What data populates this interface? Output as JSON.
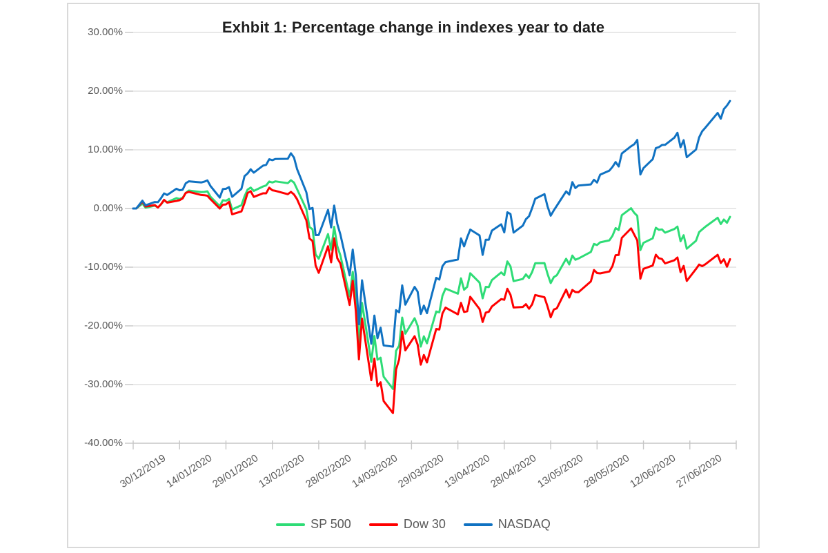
{
  "chart": {
    "grid_color": "#D9D9D9",
    "axis_color": "#C6C6C6",
    "text_color": "#595959",
    "border_color": "#D9D9D9"
  },
  "chart_data": {
    "type": "line",
    "title": "Exhbit 1:  Percentage change in indexes year to date",
    "xlabel": "",
    "ylabel": "",
    "ylim": [
      -40,
      30
    ],
    "grid": "horizontal",
    "legend_position": "bottom",
    "y_tick_values": [
      30,
      20,
      10,
      0,
      -10,
      -20,
      -30,
      -40
    ],
    "y_tick_labels": [
      "30.00%",
      "20.00%",
      "10.00%",
      "0.00%",
      "-10.00%",
      "-20.00%",
      "-30.00%",
      "-40.00%"
    ],
    "x_tick_labels": [
      "30/12/2019",
      "14/01/2020",
      "29/01/2020",
      "13/02/2020",
      "28/02/2020",
      "14/03/2020",
      "29/03/2020",
      "13/04/2020",
      "28/04/2020",
      "13/05/2020",
      "28/05/2020",
      "12/06/2020",
      "27/06/2020"
    ],
    "x_tick_interval_days": 15,
    "dates": [
      "30/12/2019",
      "31/12/2019",
      "02/01/2020",
      "03/01/2020",
      "06/01/2020",
      "07/01/2020",
      "08/01/2020",
      "09/01/2020",
      "10/01/2020",
      "13/01/2020",
      "14/01/2020",
      "15/01/2020",
      "16/01/2020",
      "17/01/2020",
      "21/01/2020",
      "22/01/2020",
      "23/01/2020",
      "24/01/2020",
      "27/01/2020",
      "28/01/2020",
      "29/01/2020",
      "30/01/2020",
      "31/01/2020",
      "03/02/2020",
      "04/02/2020",
      "05/02/2020",
      "06/02/2020",
      "07/02/2020",
      "10/02/2020",
      "11/02/2020",
      "12/02/2020",
      "13/02/2020",
      "14/02/2020",
      "18/02/2020",
      "19/02/2020",
      "20/02/2020",
      "21/02/2020",
      "24/02/2020",
      "25/02/2020",
      "26/02/2020",
      "27/02/2020",
      "28/02/2020",
      "02/03/2020",
      "03/03/2020",
      "04/03/2020",
      "05/03/2020",
      "06/03/2020",
      "09/03/2020",
      "10/03/2020",
      "11/03/2020",
      "12/03/2020",
      "13/03/2020",
      "16/03/2020",
      "17/03/2020",
      "18/03/2020",
      "19/03/2020",
      "20/03/2020",
      "23/03/2020",
      "24/03/2020",
      "25/03/2020",
      "26/03/2020",
      "27/03/2020",
      "30/03/2020",
      "31/03/2020",
      "01/04/2020",
      "02/04/2020",
      "03/04/2020",
      "06/04/2020",
      "07/04/2020",
      "08/04/2020",
      "09/04/2020",
      "13/04/2020",
      "14/04/2020",
      "15/04/2020",
      "16/04/2020",
      "17/04/2020",
      "20/04/2020",
      "21/04/2020",
      "22/04/2020",
      "23/04/2020",
      "24/04/2020",
      "27/04/2020",
      "28/04/2020",
      "29/04/2020",
      "30/04/2020",
      "01/05/2020",
      "04/05/2020",
      "05/05/2020",
      "06/05/2020",
      "07/05/2020",
      "08/05/2020",
      "11/05/2020",
      "12/05/2020",
      "13/05/2020",
      "14/05/2020",
      "15/05/2020",
      "18/05/2020",
      "19/05/2020",
      "20/05/2020",
      "21/05/2020",
      "22/05/2020",
      "26/05/2020",
      "27/05/2020",
      "28/05/2020",
      "29/05/2020",
      "01/06/2020",
      "02/06/2020",
      "03/06/2020",
      "04/06/2020",
      "05/06/2020",
      "08/06/2020",
      "09/06/2020",
      "10/06/2020",
      "11/06/2020",
      "12/06/2020",
      "15/06/2020",
      "16/06/2020",
      "17/06/2020",
      "18/06/2020",
      "19/06/2020",
      "22/06/2020",
      "23/06/2020",
      "24/06/2020",
      "25/06/2020",
      "26/06/2020",
      "29/06/2020",
      "30/06/2020",
      "01/07/2020",
      "02/07/2020",
      "06/07/2020",
      "07/07/2020",
      "08/07/2020",
      "09/07/2020",
      "10/07/2020"
    ],
    "series": [
      {
        "name": "SP 500",
        "color": "#2EDC76",
        "values": [
          0.0,
          0.0,
          0.84,
          0.13,
          0.48,
          0.2,
          0.69,
          1.36,
          1.07,
          1.77,
          1.62,
          1.81,
          2.66,
          3.06,
          2.79,
          2.82,
          2.93,
          2.0,
          0.4,
          1.41,
          1.32,
          1.64,
          -0.16,
          0.56,
          2.07,
          3.22,
          3.56,
          3.0,
          3.75,
          3.93,
          4.6,
          4.43,
          4.62,
          4.32,
          4.81,
          4.41,
          3.31,
          -0.15,
          -3.17,
          -3.54,
          -7.8,
          -8.56,
          -4.35,
          -7.04,
          -3.12,
          -6.4,
          -8.0,
          -14.99,
          -10.79,
          -15.15,
          -23.22,
          -16.09,
          -26.14,
          -21.72,
          -25.77,
          -25.42,
          -28.66,
          -30.75,
          -24.25,
          -23.38,
          -18.59,
          -21.34,
          -18.7,
          -20.0,
          -23.53,
          -21.79,
          -22.97,
          -17.55,
          -17.69,
          -14.88,
          -13.65,
          -14.52,
          -11.91,
          -13.85,
          -13.35,
          -11.03,
          -12.62,
          -15.3,
          -13.35,
          -13.4,
          -12.2,
          -10.9,
          -11.37,
          -9.02,
          -9.85,
          -12.38,
          -12.01,
          -11.22,
          -11.83,
          -10.82,
          -9.32,
          -9.3,
          -11.16,
          -12.71,
          -11.71,
          -11.36,
          -8.57,
          -9.53,
          -8.02,
          -8.74,
          -8.52,
          -7.4,
          -6.03,
          -6.22,
          -5.77,
          -5.42,
          -4.64,
          -3.34,
          -3.67,
          -1.14,
          0.05,
          -0.73,
          -1.26,
          -7.08,
          -5.86,
          -5.08,
          -3.28,
          -3.63,
          -3.57,
          -4.12,
          -3.49,
          -3.08,
          -5.59,
          -4.55,
          -6.86,
          -5.49,
          -4.04,
          -3.56,
          -3.12,
          -1.58,
          -2.65,
          -1.88,
          -2.44,
          -1.42
        ]
      },
      {
        "name": "Dow 30",
        "color": "#FF0000",
        "values": [
          0.0,
          0.0,
          1.16,
          0.34,
          0.58,
          0.16,
          0.72,
          1.47,
          1.0,
          1.29,
          1.41,
          1.72,
          2.66,
          2.84,
          2.3,
          2.27,
          2.18,
          1.58,
          -0.01,
          0.65,
          0.69,
          1.12,
          -0.99,
          -0.49,
          0.94,
          2.64,
          2.95,
          1.98,
          2.59,
          2.59,
          3.55,
          3.1,
          3.01,
          2.43,
          2.84,
          2.39,
          1.59,
          -2.02,
          -5.11,
          -5.54,
          -9.71,
          -10.96,
          -6.43,
          -9.18,
          -5.07,
          -8.47,
          -9.37,
          -16.43,
          -12.33,
          -17.47,
          -25.71,
          -18.76,
          -29.26,
          -25.58,
          -30.27,
          -29.61,
          -32.81,
          -34.86,
          -27.45,
          -25.71,
          -20.98,
          -24.18,
          -21.76,
          -23.2,
          -26.61,
          -24.97,
          -26.23,
          -20.53,
          -20.62,
          -17.89,
          -16.89,
          -18.04,
          -16.08,
          -17.64,
          -17.52,
          -15.05,
          -17.13,
          -19.34,
          -17.74,
          -17.6,
          -16.69,
          -15.43,
          -15.55,
          -13.68,
          -14.69,
          -16.87,
          -16.78,
          -16.31,
          -17.08,
          -16.34,
          -14.74,
          -15.13,
          -16.73,
          -18.54,
          -17.22,
          -17.01,
          -13.81,
          -15.18,
          -13.88,
          -14.24,
          -14.27,
          -12.42,
          -10.48,
          -11.0,
          -11.06,
          -10.73,
          -9.8,
          -7.95,
          -7.91,
          -5.0,
          -3.39,
          -4.44,
          -5.43,
          -11.95,
          -10.28,
          -9.72,
          -7.88,
          -8.48,
          -8.61,
          -9.35,
          -8.81,
          -8.35,
          -10.84,
          -9.79,
          -12.34,
          -10.31,
          -9.55,
          -9.82,
          -9.5,
          -7.89,
          -9.28,
          -8.66,
          -9.92,
          -8.63
        ]
      },
      {
        "name": "NASDAQ",
        "color": "#1072C2",
        "values": [
          0.0,
          0.0,
          1.33,
          0.54,
          1.1,
          1.07,
          1.75,
          2.57,
          2.3,
          3.36,
          3.11,
          3.19,
          4.29,
          4.64,
          4.44,
          4.58,
          4.79,
          3.82,
          1.86,
          3.31,
          3.37,
          3.64,
          1.99,
          3.35,
          5.52,
          5.97,
          6.68,
          6.11,
          7.31,
          7.43,
          8.4,
          8.24,
          8.45,
          8.47,
          9.41,
          8.68,
          6.73,
          2.77,
          -0.08,
          0.09,
          -4.53,
          -4.52,
          -0.23,
          -3.22,
          0.51,
          -2.61,
          -4.42,
          -11.39,
          -7.0,
          -11.38,
          -19.74,
          -12.23,
          -23.05,
          -18.25,
          -22.1,
          -20.31,
          -23.33,
          -23.54,
          -17.33,
          -17.7,
          -13.1,
          -16.39,
          -13.36,
          -14.18,
          -17.97,
          -16.55,
          -17.83,
          -11.81,
          -12.1,
          -9.83,
          -9.13,
          -8.7,
          -5.09,
          -6.46,
          -4.91,
          -3.59,
          -4.59,
          -7.91,
          -5.32,
          -5.33,
          -3.77,
          -2.7,
          -4.07,
          -0.65,
          -0.93,
          -4.1,
          -2.92,
          -1.82,
          -1.32,
          0.08,
          1.66,
          2.45,
          0.33,
          -1.22,
          -0.32,
          0.47,
          2.92,
          2.37,
          4.49,
          3.48,
          3.92,
          4.1,
          4.9,
          4.42,
          5.76,
          6.46,
          7.09,
          7.92,
          7.17,
          9.38,
          10.61,
          10.94,
          11.68,
          5.8,
          6.87,
          8.4,
          10.29,
          10.45,
          10.82,
          10.85,
          12.08,
          12.91,
          10.44,
          11.64,
          8.74,
          10.05,
          12.11,
          13.17,
          13.76,
          16.28,
          15.28,
          16.94,
          17.55,
          18.33
        ]
      }
    ]
  }
}
